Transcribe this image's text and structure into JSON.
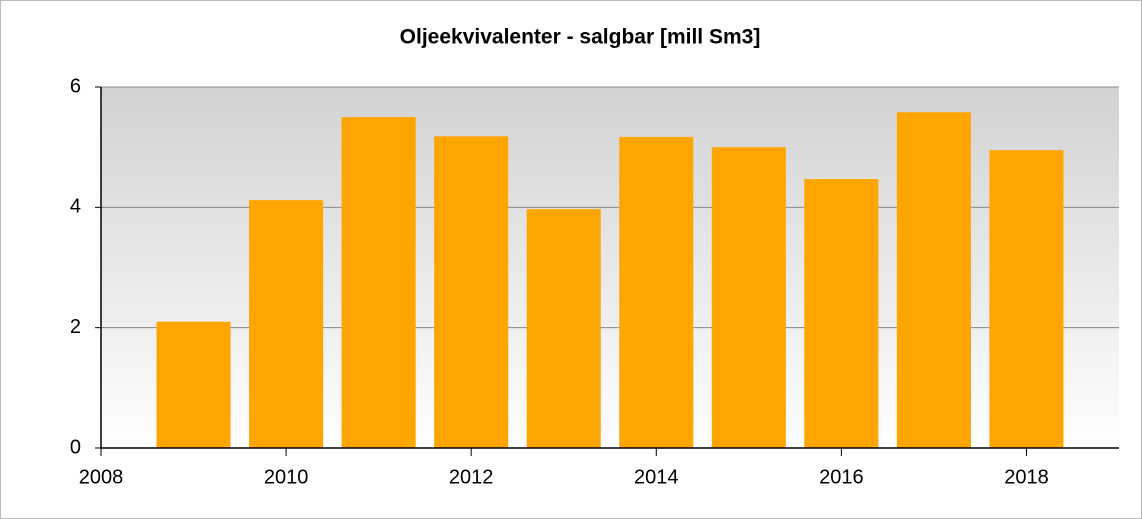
{
  "chart_data": {
    "type": "bar",
    "title": "Oljeekvivalenter - salgbar [mill Sm3]",
    "x": [
      2009,
      2010,
      2011,
      2012,
      2013,
      2014,
      2015,
      2016,
      2017,
      2018
    ],
    "values": [
      2.1,
      4.12,
      5.5,
      5.18,
      3.97,
      5.17,
      5.0,
      4.47,
      5.58,
      4.95
    ],
    "color": "#ffa500",
    "xlim": [
      2008,
      2019
    ],
    "xticks": [
      2008,
      2010,
      2012,
      2014,
      2016,
      2018
    ],
    "ylim": [
      0,
      6
    ],
    "yticks": [
      0,
      2,
      4,
      6
    ],
    "grid": true
  }
}
